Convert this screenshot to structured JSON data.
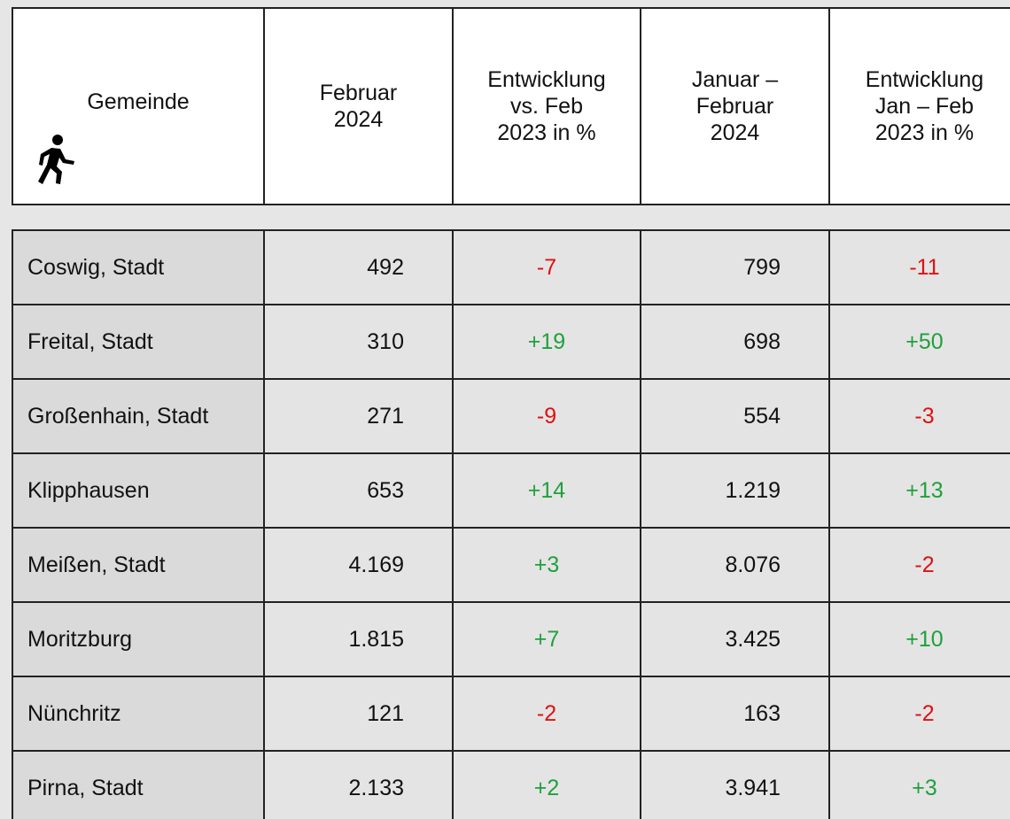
{
  "table": {
    "header": [
      [
        "Gemeinde"
      ],
      [
        "Februar",
        "2024"
      ],
      [
        "Entwicklung",
        "vs. Feb",
        "2023 in %"
      ],
      [
        "Januar –",
        "Februar",
        "2024"
      ],
      [
        "Entwicklung",
        "Jan – Feb",
        "2023 in %"
      ]
    ],
    "rows": [
      [
        "Coswig, Stadt",
        "492",
        "-7",
        "799",
        "-11"
      ],
      [
        "Freital, Stadt",
        "310",
        "+19",
        "698",
        "+50"
      ],
      [
        "Großenhain, Stadt",
        "271",
        "-9",
        "554",
        "-3"
      ],
      [
        "Klipphausen",
        "653",
        "+14",
        "1.219",
        "+13"
      ],
      [
        "Meißen, Stadt",
        "4.169",
        "+3",
        "8.076",
        "-2"
      ],
      [
        "Moritzburg",
        "1.815",
        "+7",
        "3.425",
        "+10"
      ],
      [
        "Nünchritz",
        "121",
        "-2",
        "163",
        "-2"
      ],
      [
        "Pirna, Stadt",
        "2.133",
        "+2",
        "3.941",
        "+3"
      ]
    ]
  }
}
